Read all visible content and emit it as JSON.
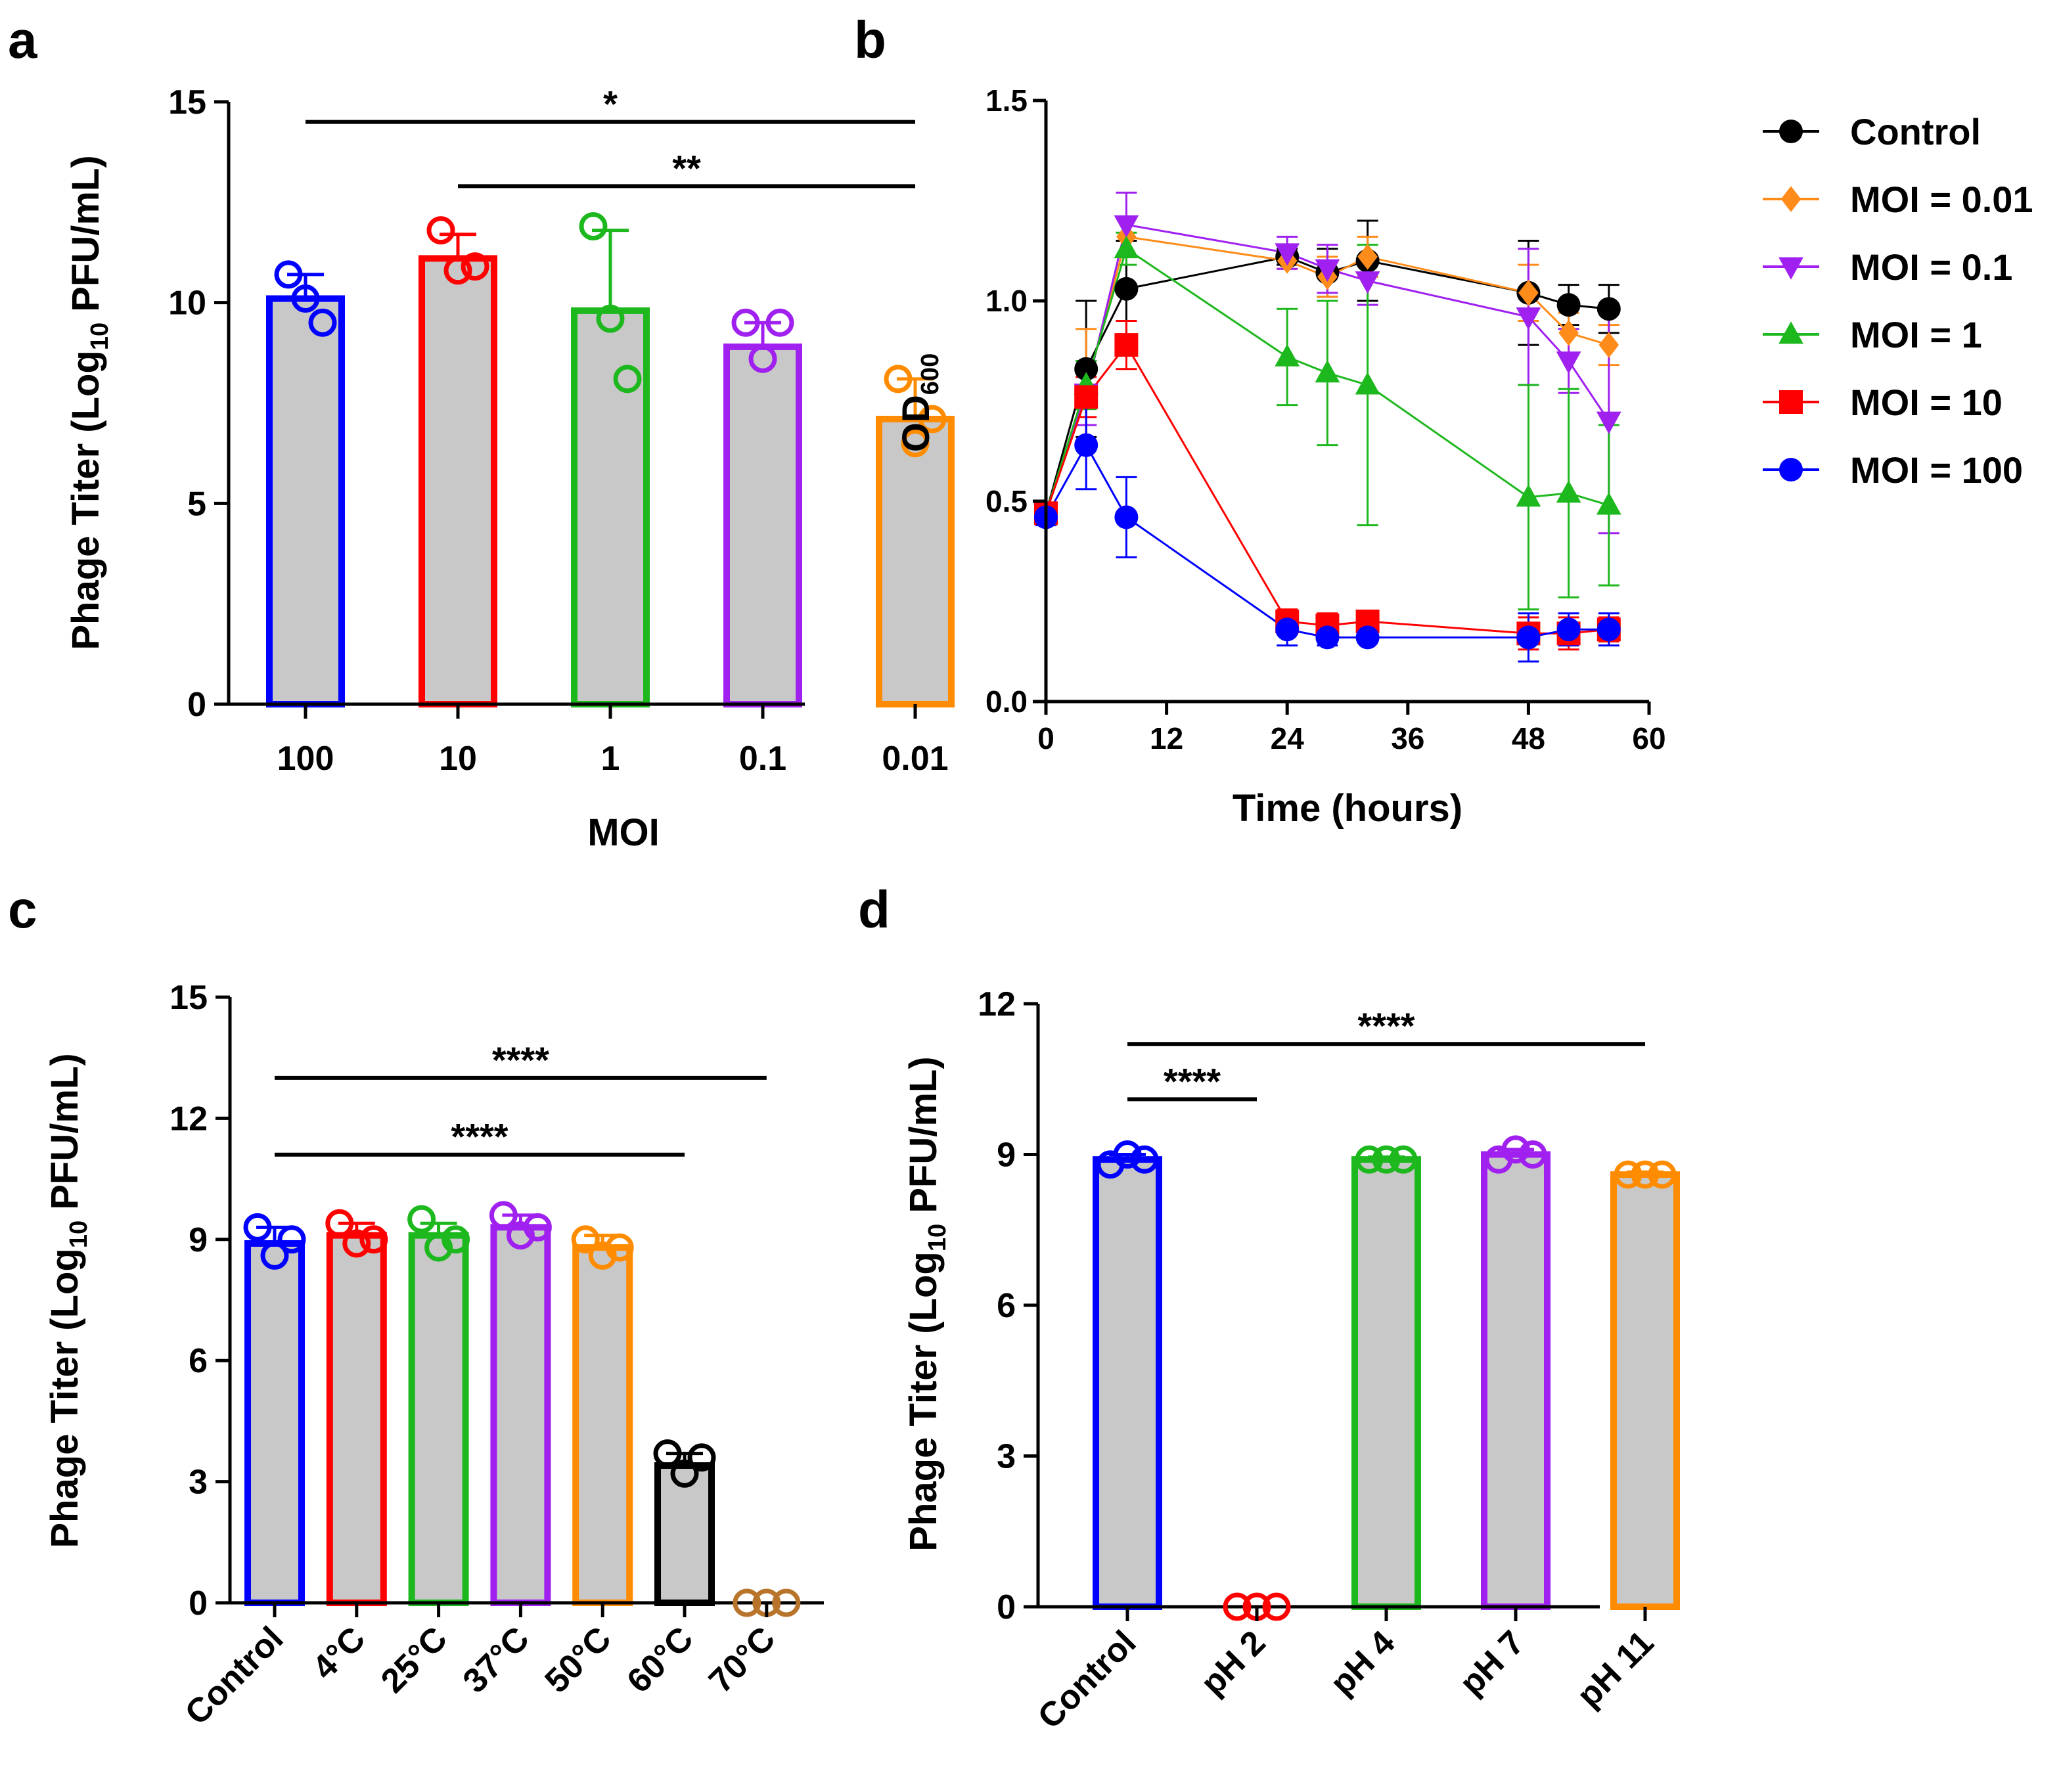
{
  "panels": {
    "a": {
      "letter": "a",
      "chart_data": {
        "type": "bar",
        "ylabel_parts": [
          "Phage Titer (Log",
          "10",
          "  PFU/mL)"
        ],
        "xlabel": "MOI",
        "ylim": [
          0,
          15
        ],
        "yticks": [
          0,
          5,
          10,
          15
        ],
        "categories": [
          "100",
          "10",
          "1",
          "0.1",
          "0.01"
        ],
        "colors": [
          "#0000ff",
          "#ff0000",
          "#1db81d",
          "#a020f0",
          "#ff8c00"
        ],
        "values": [
          10.1,
          11.1,
          9.8,
          8.9,
          7.1
        ],
        "sd": [
          0.6,
          0.6,
          2.0,
          0.6,
          1.0
        ],
        "points": [
          [
            10.7,
            10.1,
            9.5
          ],
          [
            11.8,
            10.8,
            10.9
          ],
          [
            11.9,
            9.6,
            8.1
          ],
          [
            9.5,
            8.6,
            9.5
          ],
          [
            8.1,
            6.5,
            7.1
          ]
        ],
        "significance": [
          {
            "from": 0,
            "to": 4,
            "y": 14.5,
            "label": "*"
          },
          {
            "from": 1,
            "to": 4,
            "y": 12.9,
            "label": "**"
          }
        ]
      }
    },
    "b": {
      "letter": "b",
      "chart_data": {
        "type": "line",
        "ylabel": "OD",
        "ylabel_sub": "600",
        "xlabel": "Time (hours)",
        "xlim": [
          0,
          60
        ],
        "ylim": [
          0,
          1.5
        ],
        "xticks": [
          0,
          12,
          24,
          36,
          48,
          60
        ],
        "yticks": [
          "0.0",
          "0.5",
          "1.0",
          "1.5"
        ],
        "x": [
          0,
          4,
          8,
          24,
          28,
          32,
          48,
          52,
          56
        ],
        "series": [
          {
            "name": "Control",
            "color": "#000000",
            "marker": "circle",
            "values": [
              0.47,
              0.83,
              1.03,
              1.11,
              1.07,
              1.1,
              1.02,
              0.99,
              0.98
            ],
            "err": [
              0.02,
              0.17,
              0.12,
              0.02,
              0.06,
              0.1,
              0.13,
              0.05,
              0.06
            ]
          },
          {
            "name": "MOI = 0.01",
            "color": "#ff8c1a",
            "marker": "diamond",
            "values": [
              0.47,
              0.78,
              1.16,
              1.1,
              1.06,
              1.11,
              1.02,
              0.92,
              0.89
            ],
            "err": [
              0.02,
              0.15,
              0.05,
              0.02,
              0.05,
              0.05,
              0.07,
              0.05,
              0.05
            ]
          },
          {
            "name": "MOI = 0.1",
            "color": "#a020f0",
            "marker": "triangle-down",
            "values": [
              0.47,
              0.77,
              1.19,
              1.12,
              1.08,
              1.05,
              0.96,
              0.85,
              0.7
            ],
            "err": [
              0.02,
              0.08,
              0.08,
              0.04,
              0.06,
              0.06,
              0.17,
              0.08,
              0.28
            ]
          },
          {
            "name": "MOI = 1",
            "color": "#1db81d",
            "marker": "triangle-up",
            "values": [
              0.47,
              0.79,
              1.13,
              0.86,
              0.82,
              0.79,
              0.51,
              0.52,
              0.49
            ],
            "err": [
              0.02,
              0.06,
              0.04,
              0.12,
              0.18,
              0.35,
              0.28,
              0.26,
              0.2
            ]
          },
          {
            "name": "MOI = 10",
            "color": "#ff0000",
            "marker": "square",
            "values": [
              0.47,
              0.76,
              0.89,
              0.2,
              0.19,
              0.2,
              0.17,
              0.17,
              0.18
            ],
            "err": [
              0.02,
              0.05,
              0.06,
              0.03,
              0.03,
              0.02,
              0.04,
              0.04,
              0.03
            ]
          },
          {
            "name": "MOI = 100",
            "color": "#0000ff",
            "marker": "circle",
            "values": [
              0.46,
              0.64,
              0.46,
              0.18,
              0.16,
              0.16,
              0.16,
              0.18,
              0.18
            ],
            "err": [
              0.02,
              0.11,
              0.1,
              0.04,
              0.02,
              0.01,
              0.06,
              0.04,
              0.04
            ]
          }
        ]
      }
    },
    "c": {
      "letter": "c",
      "chart_data": {
        "type": "bar",
        "ylabel_parts": [
          "Phage Titer (Log",
          "10",
          "  PFU/mL)"
        ],
        "ylim": [
          0,
          15
        ],
        "yticks": [
          0,
          3,
          6,
          9,
          12,
          15
        ],
        "categories": [
          "Control",
          "4°C",
          "25°C",
          "37°C",
          "50°C",
          "60°C",
          "70°C"
        ],
        "colors": [
          "#0000ff",
          "#ff0000",
          "#1db81d",
          "#a020f0",
          "#ff8c00",
          "#000000",
          "#b8742a"
        ],
        "values": [
          8.9,
          9.1,
          9.1,
          9.3,
          8.8,
          3.4,
          0.0
        ],
        "sd": [
          0.4,
          0.3,
          0.3,
          0.3,
          0.3,
          0.3,
          0.0
        ],
        "points": [
          [
            9.3,
            8.6,
            9.0
          ],
          [
            9.4,
            8.9,
            9.0
          ],
          [
            9.5,
            8.8,
            9.0
          ],
          [
            9.6,
            9.1,
            9.3
          ],
          [
            9.0,
            8.6,
            8.8
          ],
          [
            3.7,
            3.2,
            3.6
          ],
          [
            0.0,
            0.0,
            0.0
          ]
        ],
        "significance": [
          {
            "from": 0,
            "to": 6,
            "y": 13.0,
            "label": "****"
          },
          {
            "from": 0,
            "to": 5,
            "y": 11.1,
            "label": "****"
          }
        ]
      }
    },
    "d": {
      "letter": "d",
      "chart_data": {
        "type": "bar",
        "ylabel_parts": [
          "Phage Titer (Log",
          "10",
          "  PFU/mL)"
        ],
        "ylim": [
          0,
          12
        ],
        "yticks": [
          0,
          3,
          6,
          9,
          12
        ],
        "categories": [
          "Control",
          "pH 2",
          "pH 4",
          "pH 7",
          "pH 11"
        ],
        "colors": [
          "#0000ff",
          "#ff0000",
          "#1db81d",
          "#a020f0",
          "#ff8c00"
        ],
        "values": [
          8.9,
          0.0,
          8.9,
          9.0,
          8.6
        ],
        "sd": [
          0.1,
          0.0,
          0.05,
          0.1,
          0.05
        ],
        "points": [
          [
            8.8,
            9.0,
            8.9
          ],
          [
            0.0,
            0.0,
            0.0
          ],
          [
            8.9,
            8.9,
            8.9
          ],
          [
            8.9,
            9.1,
            9.0
          ],
          [
            8.6,
            8.6,
            8.6
          ]
        ],
        "significance": [
          {
            "from": 0,
            "to": 4,
            "y": 11.2,
            "label": "****"
          },
          {
            "from": 0,
            "to": 1,
            "y": 10.1,
            "label": "****"
          }
        ]
      }
    }
  }
}
